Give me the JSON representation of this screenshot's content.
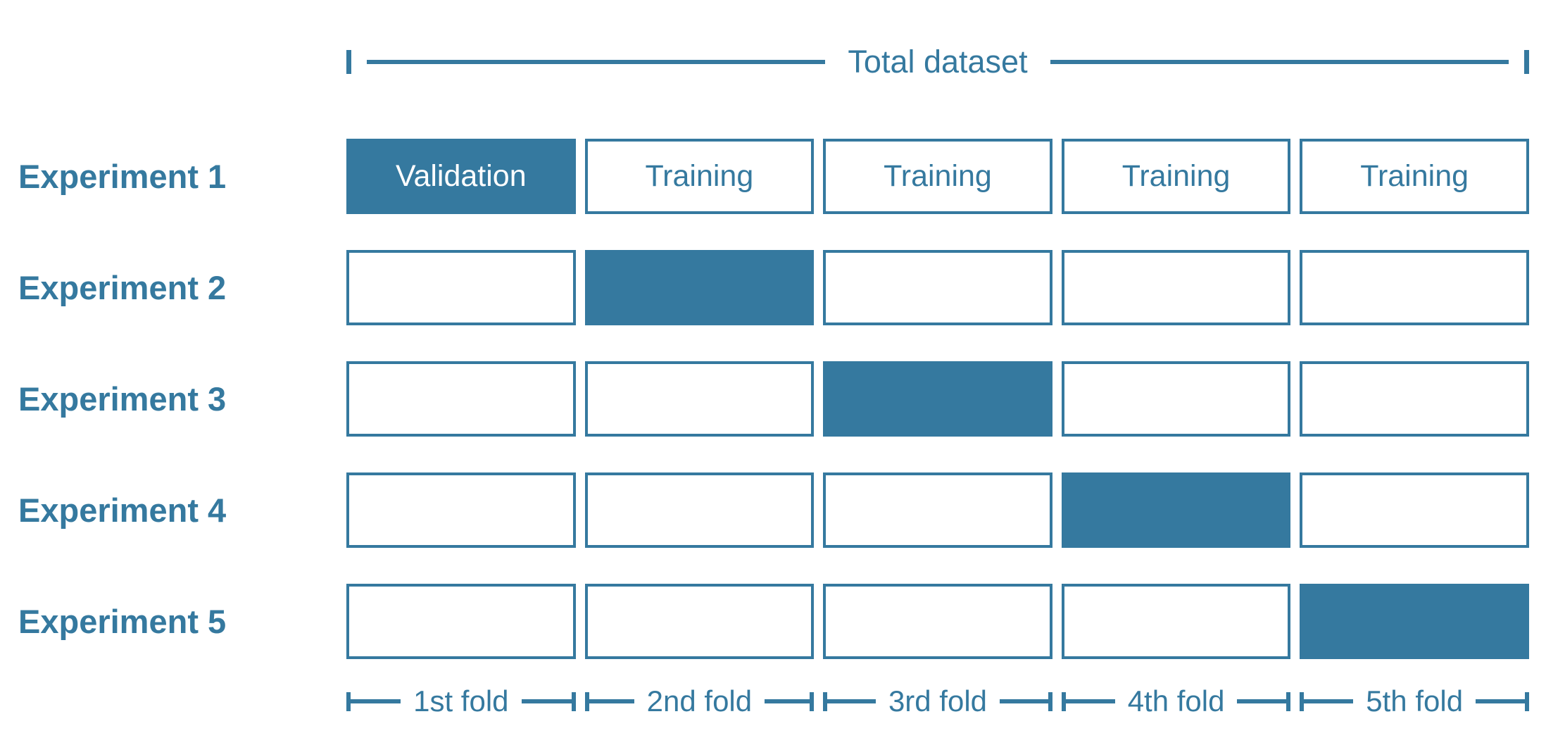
{
  "colors": {
    "accent_blue": "#35799F",
    "background": "#ffffff",
    "filled_cell_text": "#ffffff"
  },
  "icons": {
    "left_range_bracket": "⊢",
    "right_range_bracket": "⊣"
  },
  "header": {
    "total_dataset_label": "Total dataset"
  },
  "experiments": [
    {
      "label": "Experiment 1",
      "validation_fold": 0,
      "cells": [
        "Validation",
        "Training",
        "Training",
        "Training",
        "Training"
      ]
    },
    {
      "label": "Experiment 2",
      "validation_fold": 1,
      "cells": [
        "",
        "",
        "",
        "",
        ""
      ]
    },
    {
      "label": "Experiment 3",
      "validation_fold": 2,
      "cells": [
        "",
        "",
        "",
        "",
        ""
      ]
    },
    {
      "label": "Experiment 4",
      "validation_fold": 3,
      "cells": [
        "",
        "",
        "",
        "",
        ""
      ]
    },
    {
      "label": "Experiment 5",
      "validation_fold": 4,
      "cells": [
        "",
        "",
        "",
        "",
        ""
      ]
    }
  ],
  "folds": [
    "1st fold",
    "2nd fold",
    "3rd fold",
    "4th fold",
    "5th fold"
  ]
}
